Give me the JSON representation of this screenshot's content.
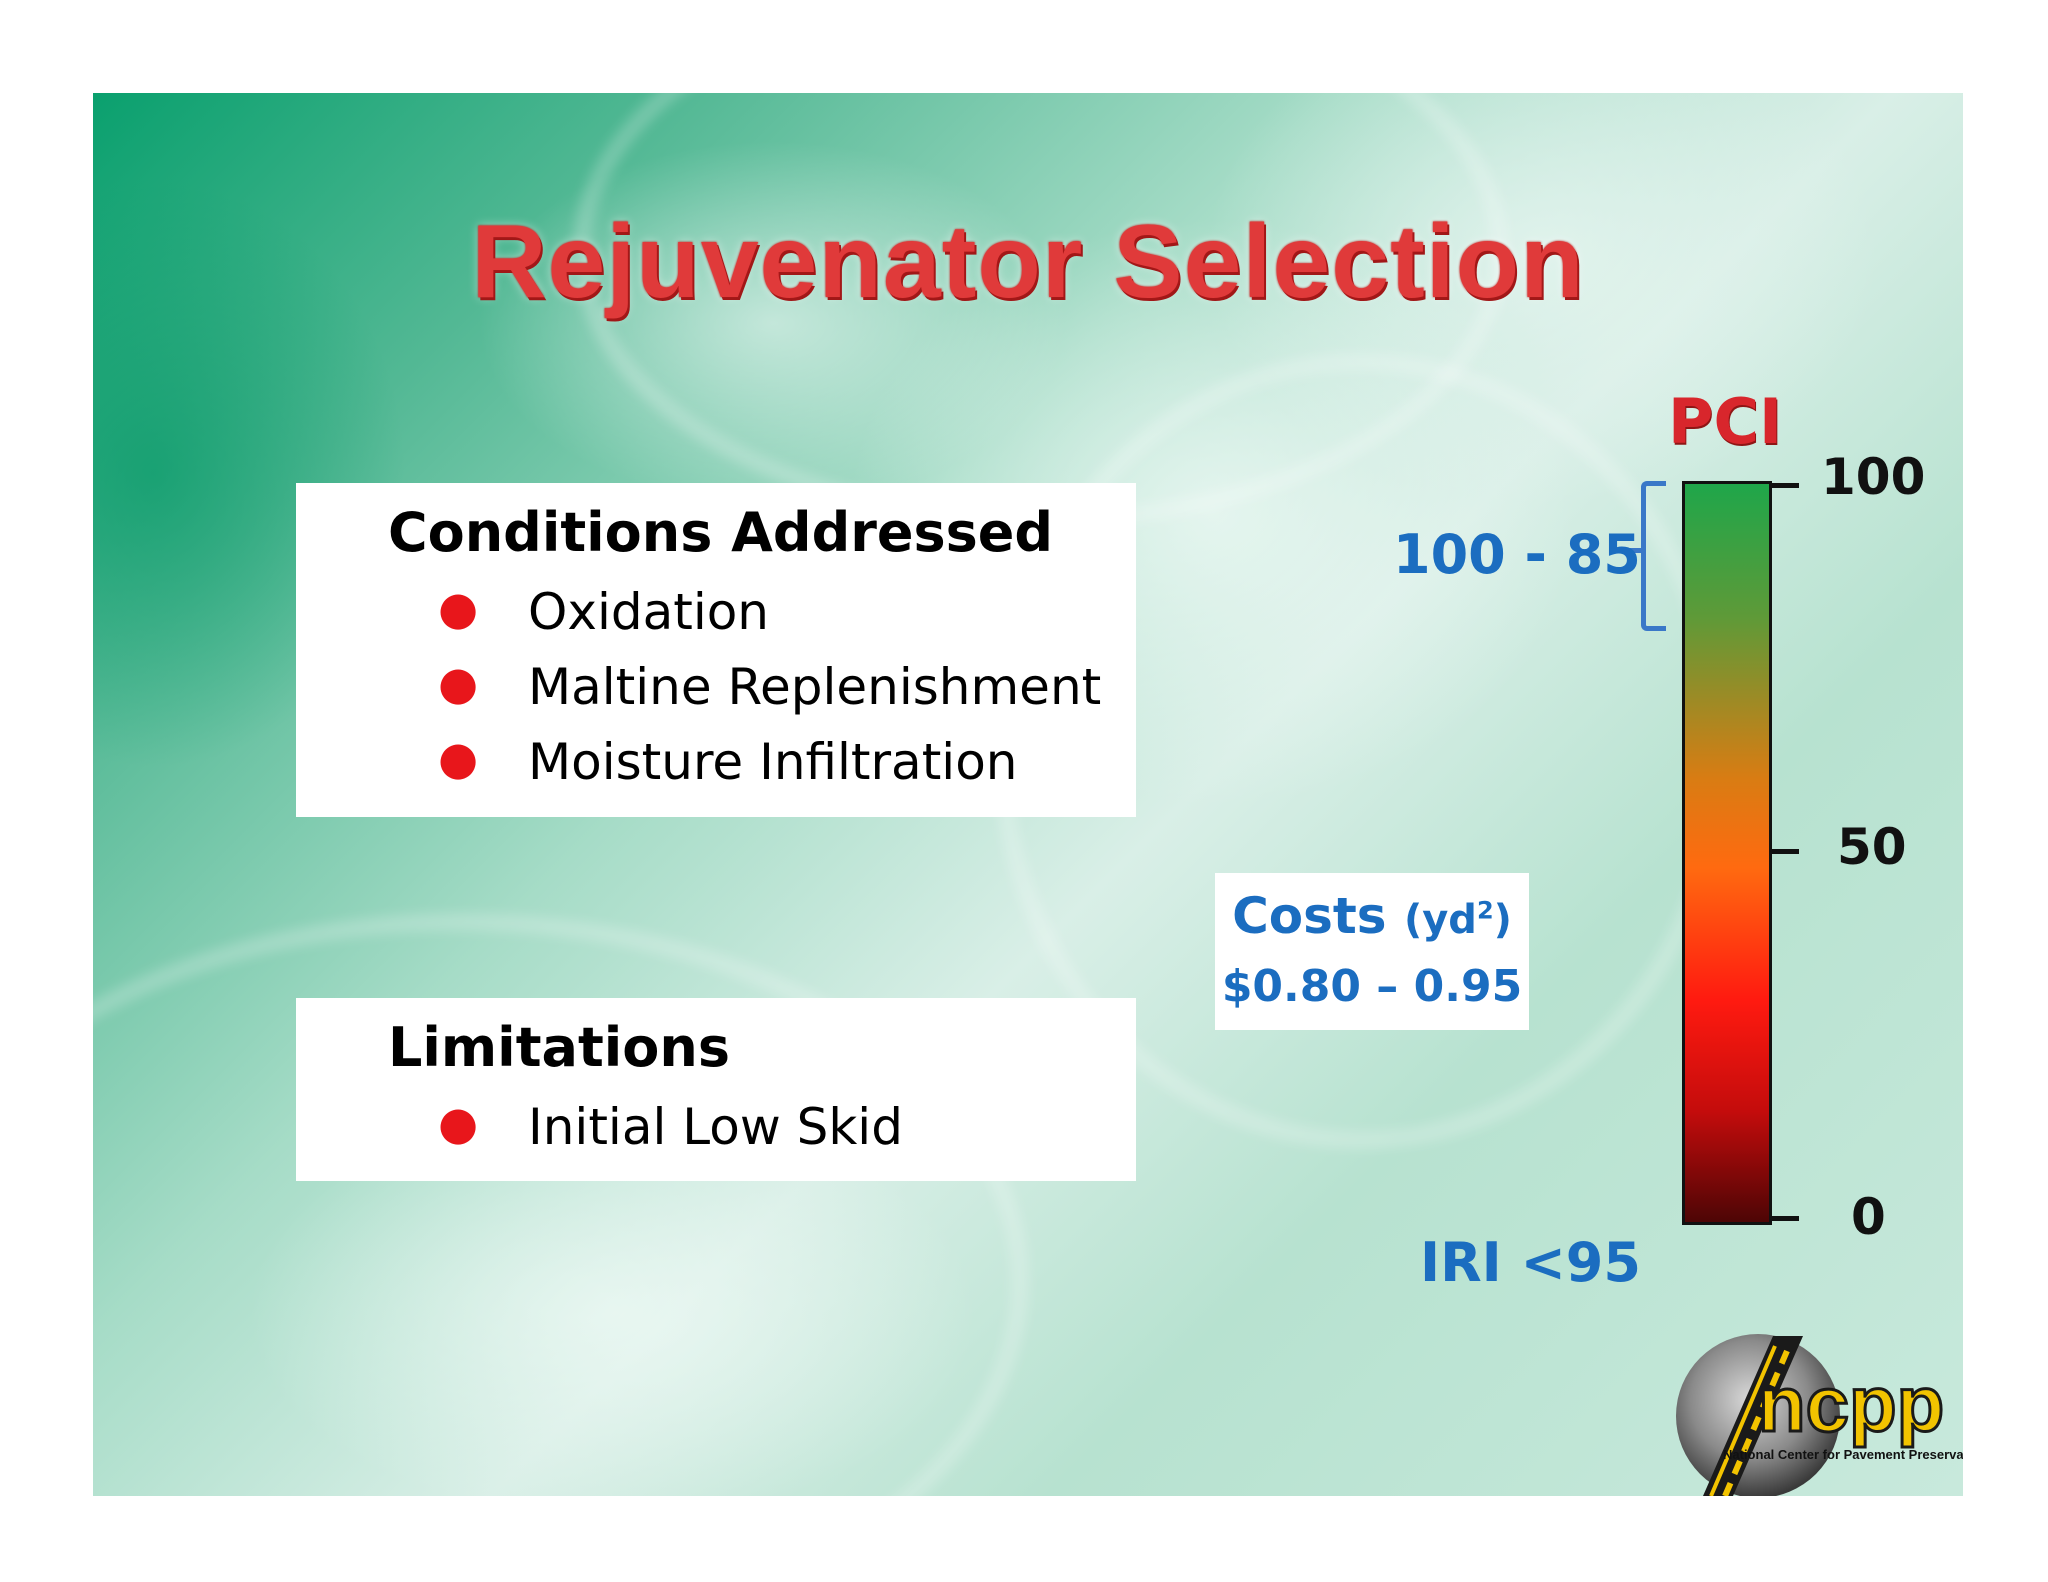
{
  "title": "Rejuvenator Selection",
  "conditions": {
    "heading": "Conditions Addressed",
    "items": [
      "Oxidation",
      "Maltine Replenishment",
      "Moisture Infiltration"
    ]
  },
  "limitations": {
    "heading": "Limitations",
    "items": [
      "Initial Low Skid"
    ]
  },
  "costs": {
    "label": "Costs",
    "unit_base": "(yd",
    "unit_sup": "2",
    "unit_close": ")",
    "value": "$0.80 – 0.95"
  },
  "pci_scale": {
    "title": "PCI",
    "ticks": [
      "100",
      "50",
      "0"
    ],
    "range_label": "100 - 85",
    "iri_label": "IRI <95"
  },
  "logo": {
    "wordmark": "ncpp",
    "subtitle": "National Center for Pavement Preservation"
  },
  "colors": {
    "title": "#e03a3a",
    "bullet": "#e8161b",
    "accent_blue": "#1b6dc0",
    "pci_top": "#1fa64a",
    "pci_bottom": "#4d0505"
  }
}
